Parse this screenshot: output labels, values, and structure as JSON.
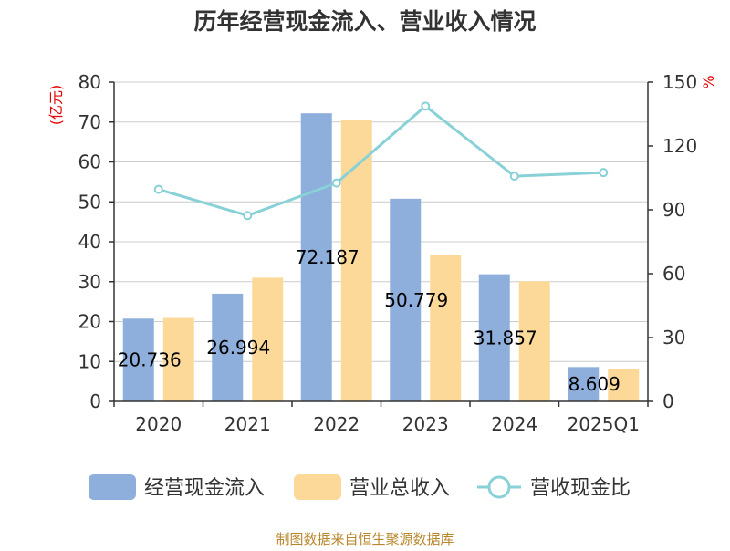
{
  "chart_data": {
    "type": "bar",
    "title": "历年经营现金流入、营业收入情况",
    "categories": [
      "2020",
      "2021",
      "2022",
      "2023",
      "2024",
      "2025Q1"
    ],
    "series": [
      {
        "name": "经营现金流入",
        "axis": "left",
        "type": "bar",
        "color": "#8eaedb",
        "values": [
          20.736,
          26.994,
          72.187,
          50.779,
          31.857,
          8.609
        ],
        "labels": [
          "20.736",
          "26.994",
          "72.187",
          "50.779",
          "31.857",
          "8.609"
        ]
      },
      {
        "name": "营业总收入",
        "axis": "left",
        "type": "bar",
        "color": "#fdd999",
        "values": [
          20.9,
          31.0,
          70.5,
          36.6,
          30.1,
          8.1
        ]
      },
      {
        "name": "营收现金比",
        "axis": "right",
        "type": "line",
        "color": "#88d1d7",
        "values": [
          99.6,
          87.3,
          102.6,
          138.7,
          105.8,
          107.5
        ]
      }
    ],
    "y_left": {
      "label": "(亿元)",
      "min": 0,
      "max": 80,
      "ticks": [
        "0",
        "10",
        "20",
        "30",
        "40",
        "50",
        "60",
        "70",
        "80"
      ]
    },
    "y_right": {
      "label": "%",
      "min": 0,
      "max": 150,
      "ticks": [
        "0",
        "30",
        "60",
        "90",
        "120",
        "150"
      ]
    },
    "grid": true,
    "legend": "bottom-center"
  },
  "footer": {
    "source": "制图数据来自恒生聚源数据库"
  }
}
